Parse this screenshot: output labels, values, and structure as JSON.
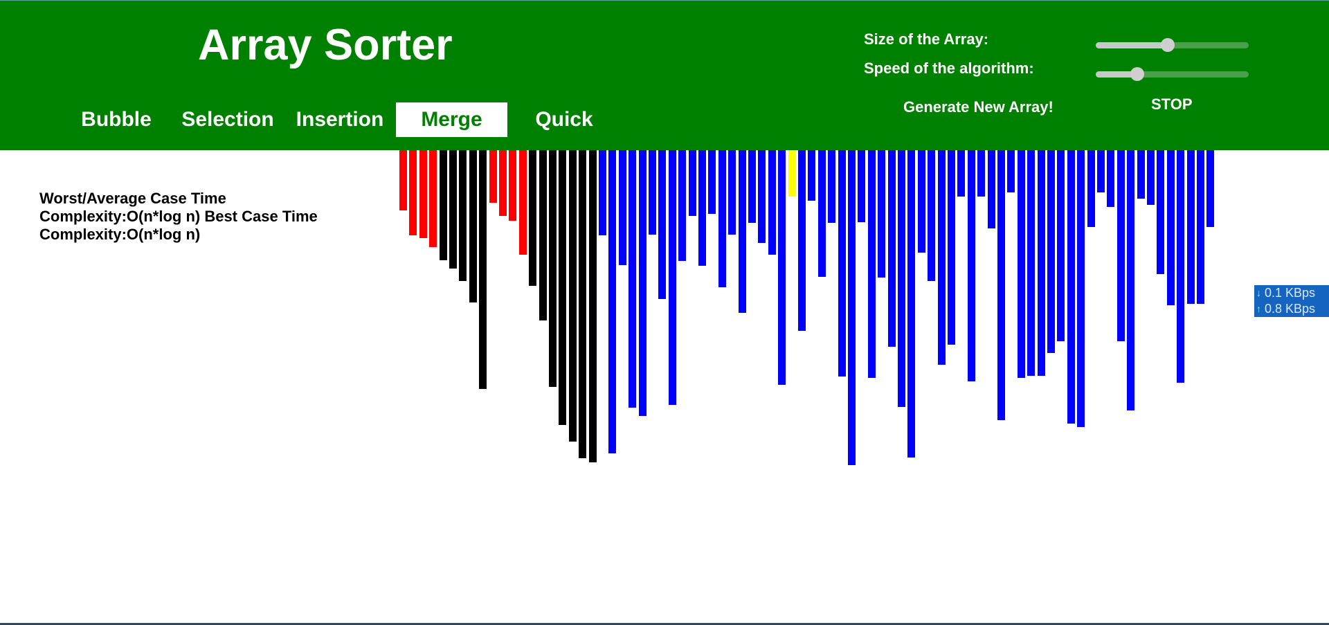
{
  "header": {
    "title": "Array Sorter",
    "algorithms": [
      {
        "label": "Bubble",
        "active": false
      },
      {
        "label": "Selection",
        "active": false
      },
      {
        "label": "Insertion",
        "active": false
      },
      {
        "label": "Merge",
        "active": true
      },
      {
        "label": "Quick",
        "active": false
      }
    ],
    "controls": {
      "size_label": "Size of the Array:",
      "size_value_fraction": 0.47,
      "speed_label": "Speed of the algorithm:",
      "speed_value_fraction": 0.27,
      "generate_label": "Generate New Array!",
      "stop_label": "STOP"
    }
  },
  "complexity": {
    "text": "Worst/Average Case Time Complexity:O(n*log n) Best Case Time Complexity:O(n*log n)"
  },
  "array": {
    "colors": {
      "default": "#0000ff",
      "comparing": "#ff0000",
      "sorted": "#000000",
      "active": "#ffff00",
      "header": "#008000"
    },
    "values": [
      71,
      101,
      104,
      115,
      130,
      140,
      155,
      180,
      283,
      62,
      78,
      84,
      124,
      161,
      202,
      280,
      325,
      345,
      365,
      370,
      101,
      359,
      136,
      305,
      315,
      100,
      176,
      302,
      131,
      78,
      137,
      75,
      162,
      100,
      193,
      86,
      110,
      124,
      278,
      55,
      214,
      60,
      150,
      86,
      268,
      373,
      85,
      270,
      151,
      233,
      304,
      364,
      121,
      155,
      254,
      230,
      55,
      274,
      55,
      93,
      320,
      50,
      270,
      267,
      267,
      240,
      226,
      324,
      328,
      91,
      50,
      67,
      226,
      308,
      57,
      65,
      147,
      184,
      275,
      182,
      182,
      91
    ],
    "states": [
      "comparing",
      "comparing",
      "comparing",
      "comparing",
      "sorted",
      "sorted",
      "sorted",
      "sorted",
      "sorted",
      "comparing",
      "comparing",
      "comparing",
      "comparing",
      "sorted",
      "sorted",
      "sorted",
      "sorted",
      "sorted",
      "sorted",
      "sorted",
      "default",
      "default",
      "default",
      "default",
      "default",
      "default",
      "default",
      "default",
      "default",
      "default",
      "default",
      "default",
      "default",
      "default",
      "default",
      "default",
      "default",
      "default",
      "default",
      "active",
      "default",
      "default",
      "default",
      "default",
      "default",
      "default",
      "default",
      "default",
      "default",
      "default",
      "default",
      "default",
      "default",
      "default",
      "default",
      "default",
      "default",
      "default",
      "default",
      "default",
      "default",
      "default",
      "default",
      "default",
      "default",
      "default",
      "default",
      "default",
      "default",
      "default",
      "default",
      "default",
      "default",
      "default",
      "default",
      "default",
      "default",
      "default",
      "default",
      "default",
      "default",
      "default"
    ]
  },
  "network_widget": {
    "download": "0.1 KBps",
    "upload": "0.8 KBps"
  }
}
